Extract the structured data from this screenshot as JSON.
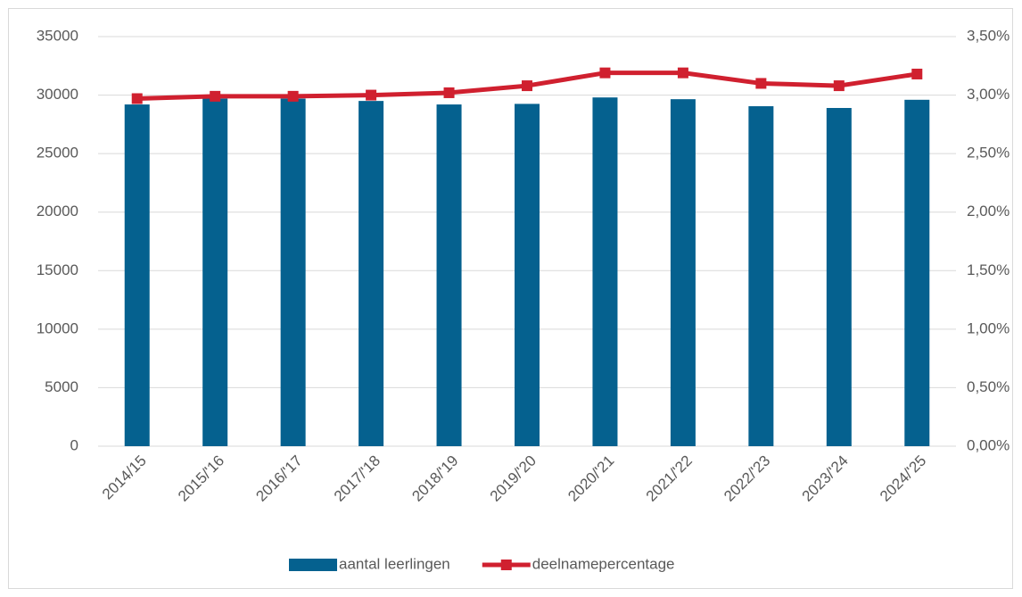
{
  "chart_data": {
    "type": "bar-line",
    "categories": [
      "2014/15",
      "2015/'16",
      "2016/'17",
      "2017/'18",
      "2018/'19",
      "2019/'20",
      "2020/'21",
      "2021/'22",
      "2022/'23",
      "2023/'24",
      "2024/'25"
    ],
    "series": [
      {
        "name": "aantal leerlingen",
        "type": "bar",
        "color": "#05618f",
        "values": [
          29200,
          29700,
          29700,
          29500,
          29200,
          29250,
          29800,
          29650,
          29050,
          28900,
          29600
        ]
      },
      {
        "name": "deelnamepercentage",
        "type": "line",
        "axis": "y2",
        "color": "#d0202f",
        "values": [
          2.97,
          2.99,
          2.99,
          3.0,
          3.02,
          3.08,
          3.19,
          3.19,
          3.1,
          3.08,
          3.18
        ]
      }
    ],
    "ylim": [
      0,
      35000
    ],
    "yticks": [
      0,
      5000,
      10000,
      15000,
      20000,
      25000,
      30000,
      35000
    ],
    "y2lim": [
      0,
      3.5
    ],
    "y2ticks": [
      {
        "value": 0,
        "label": "0,00%"
      },
      {
        "value": 0.5,
        "label": "0,50%"
      },
      {
        "value": 1,
        "label": "1,00%"
      },
      {
        "value": 1.5,
        "label": "1,50%"
      },
      {
        "value": 2,
        "label": "2,00%"
      },
      {
        "value": 2.5,
        "label": "2,50%"
      },
      {
        "value": 3,
        "label": "3,00%"
      },
      {
        "value": 3.5,
        "label": "3,50%"
      }
    ],
    "grid": true,
    "legend": "bottom"
  }
}
